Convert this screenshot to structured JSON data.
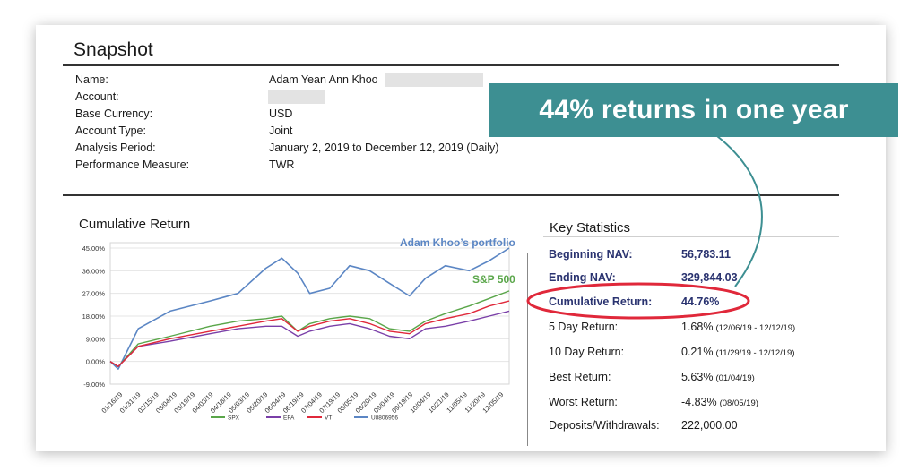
{
  "callout": {
    "text": "44% returns in one year"
  },
  "snapshot": {
    "title": "Snapshot",
    "rows": [
      {
        "label": "Name:",
        "value": "Adam Yean Ann Khoo"
      },
      {
        "label": "Account:",
        "value": ""
      },
      {
        "label": "Base Currency:",
        "value": "USD"
      },
      {
        "label": "Account Type:",
        "value": "Joint"
      },
      {
        "label": "Analysis Period:",
        "value": "January 2, 2019 to December 12, 2019 (Daily)"
      },
      {
        "label": "Performance Measure:",
        "value": "TWR"
      }
    ]
  },
  "cumulative_return": {
    "title": "Cumulative Return",
    "annotation_portfolio": "Adam Khoo’s portfolio",
    "annotation_sp500": "S&P 500"
  },
  "key_statistics": {
    "title": "Key Statistics",
    "rows": [
      {
        "label": "Beginning NAV:",
        "value": "56,783.11",
        "sub": "",
        "emphasis": true
      },
      {
        "label": "Ending NAV:",
        "value": "329,844.03",
        "sub": "",
        "emphasis": true
      },
      {
        "label": "Cumulative Return:",
        "value": "44.76%",
        "sub": "",
        "emphasis": true
      },
      {
        "label": "5 Day Return:",
        "value": "1.68%",
        "sub": "(12/06/19 - 12/12/19)",
        "emphasis": false
      },
      {
        "label": "10 Day Return:",
        "value": "0.21%",
        "sub": "(11/29/19 - 12/12/19)",
        "emphasis": false
      },
      {
        "label": "Best Return:",
        "value": "5.63%",
        "sub": "(01/04/19)",
        "emphasis": false
      },
      {
        "label": "Worst Return:",
        "value": "-4.83%",
        "sub": "(08/05/19)",
        "emphasis": false
      },
      {
        "label": "Deposits/Withdrawals:",
        "value": "222,000.00",
        "sub": "",
        "emphasis": false
      }
    ]
  },
  "colors": {
    "portfolio": "#5b86c4",
    "spx": "#5aa64a",
    "efa": "#7a3fa8",
    "vt": "#e0283a",
    "callout_bg": "#3d8f92",
    "highlight_ring": "#e0283a"
  },
  "chart_data": {
    "type": "line",
    "title": "Cumulative Return",
    "xlabel": "",
    "ylabel": "",
    "y_ticks": [
      "45.00%",
      "36.00%",
      "27.00%",
      "18.00%",
      "9.00%",
      "0.00%",
      "-9.00%"
    ],
    "ylim": [
      -9,
      45
    ],
    "x_ticks": [
      "01/16/19",
      "01/31/19",
      "02/15/19",
      "03/04/19",
      "03/19/19",
      "04/03/19",
      "04/18/19",
      "05/03/19",
      "05/20/19",
      "06/04/19",
      "06/19/19",
      "07/04/19",
      "07/19/19",
      "08/05/19",
      "08/20/19",
      "09/04/19",
      "09/19/19",
      "10/04/19",
      "10/21/19",
      "11/05/19",
      "11/20/19",
      "12/05/19"
    ],
    "legend_position": "bottom",
    "grid": true,
    "x_breaks": [
      0,
      0.02,
      0.07,
      0.15,
      0.25,
      0.32,
      0.39,
      0.43,
      0.47,
      0.5,
      0.55,
      0.6,
      0.65,
      0.7,
      0.75,
      0.79,
      0.84,
      0.9,
      0.95,
      1.0
    ],
    "series": [
      {
        "name": "U8806956",
        "values": [
          0,
          -3,
          13,
          20,
          24,
          27,
          37,
          41,
          35,
          27,
          29,
          38,
          36,
          31,
          26,
          33,
          38,
          36,
          40,
          45
        ]
      },
      {
        "name": "SPX",
        "values": [
          0,
          -2,
          7,
          10,
          14,
          16,
          17,
          18,
          12,
          15,
          17,
          18,
          17,
          13,
          12,
          16,
          19,
          22,
          25,
          28
        ]
      },
      {
        "name": "EFA",
        "values": [
          0,
          -2,
          6,
          8,
          11,
          13,
          14,
          14,
          10,
          12,
          14,
          15,
          13,
          10,
          9,
          13,
          14,
          16,
          18,
          20
        ]
      },
      {
        "name": "VT",
        "values": [
          0,
          -2,
          6,
          9,
          12,
          14,
          16,
          17,
          12,
          14,
          16,
          17,
          15,
          12,
          11,
          15,
          17,
          19,
          22,
          24
        ]
      }
    ]
  }
}
